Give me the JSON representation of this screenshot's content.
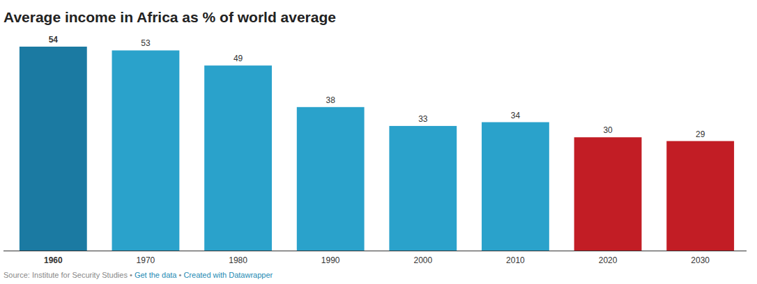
{
  "chart_data": {
    "type": "bar",
    "title": "Average income in Africa as % of world average",
    "categories": [
      "1960",
      "1970",
      "1980",
      "1990",
      "2000",
      "2010",
      "2020",
      "2030"
    ],
    "values": [
      54,
      53,
      49,
      38,
      33,
      34,
      30,
      29
    ],
    "colors": [
      "#1b7aa2",
      "#2aa2cb",
      "#2aa2cb",
      "#2aa2cb",
      "#2aa2cb",
      "#2aa2cb",
      "#c21d25",
      "#c21d25"
    ],
    "ylim": [
      0,
      54
    ],
    "grid": false,
    "data_labels": true,
    "tick_labels": "x",
    "source": "Source: Institute for Security Studies • Get the data • Created with Datawrapper"
  }
}
